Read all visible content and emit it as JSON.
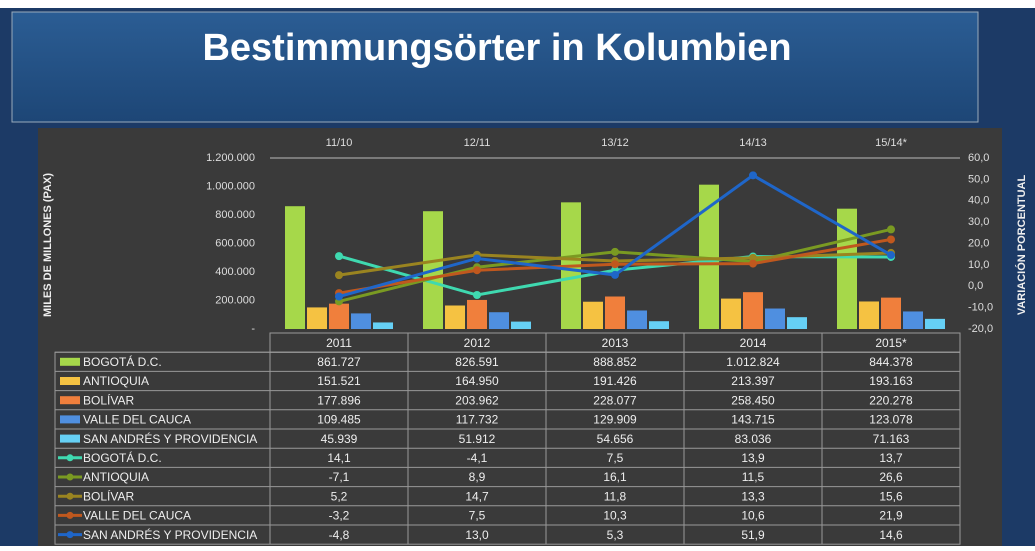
{
  "chart_data": {
    "type": "combo",
    "title": "Bestimmungsörter in Kolumbien",
    "y_label": "MILES DE MILLONES (PAX)",
    "y2_label": "VARIACIÓN PORCENTUAL",
    "categories": [
      "2011",
      "2012",
      "2013",
      "2014",
      "2015*"
    ],
    "top_categories": [
      "11/10",
      "12/11",
      "13/12",
      "14/13",
      "15/14*"
    ],
    "ylim": [
      0,
      1200000
    ],
    "yticks": [
      {
        "value": 0,
        "label": "-"
      },
      {
        "value": 200000,
        "label": "200.000"
      },
      {
        "value": 400000,
        "label": "400.000"
      },
      {
        "value": 600000,
        "label": "600.000"
      },
      {
        "value": 800000,
        "label": "800.000"
      },
      {
        "value": 1000000,
        "label": "1.000.000"
      },
      {
        "value": 1200000,
        "label": "1.200.000"
      }
    ],
    "y2lim": [
      -20,
      60
    ],
    "y2ticks": [
      {
        "value": -20,
        "label": "-20,0"
      },
      {
        "value": -10,
        "label": "-10,0"
      },
      {
        "value": 0,
        "label": "0,0"
      },
      {
        "value": 10,
        "label": "10,0"
      },
      {
        "value": 20,
        "label": "20,0"
      },
      {
        "value": 30,
        "label": "30,0"
      },
      {
        "value": 40,
        "label": "40,0"
      },
      {
        "value": 50,
        "label": "50,0"
      },
      {
        "value": 60,
        "label": "60,0"
      }
    ],
    "series": [
      {
        "name": "BOGOTÁ D.C.",
        "type": "bar",
        "color": "#a6d84a",
        "values": [
          861727,
          826591,
          888852,
          1012824,
          844378
        ],
        "value_labels": [
          "861.727",
          "826.591",
          "888.852",
          "1.012.824",
          "844.378"
        ]
      },
      {
        "name": "ANTIOQUIA",
        "type": "bar",
        "color": "#f5c242",
        "values": [
          151521,
          164950,
          191426,
          213397,
          193163
        ],
        "value_labels": [
          "151.521",
          "164.950",
          "191.426",
          "213.397",
          "193.163"
        ]
      },
      {
        "name": "BOLÍVAR",
        "type": "bar",
        "color": "#f07f3c",
        "values": [
          177896,
          203962,
          228077,
          258450,
          220278
        ],
        "value_labels": [
          "177.896",
          "203.962",
          "228.077",
          "258.450",
          "220.278"
        ]
      },
      {
        "name": "VALLE DEL CAUCA",
        "type": "bar",
        "color": "#4f8fe0",
        "values": [
          109485,
          117732,
          129909,
          143715,
          123078
        ],
        "value_labels": [
          "109.485",
          "117.732",
          "129.909",
          "143.715",
          "123.078"
        ]
      },
      {
        "name": "SAN ANDRÉS Y PROVIDENCIA",
        "type": "bar",
        "color": "#66d0f5",
        "values": [
          45939,
          51912,
          54656,
          83036,
          71163
        ],
        "value_labels": [
          "45.939",
          "51.912",
          "54.656",
          "83.036",
          "71.163"
        ]
      },
      {
        "name": "BOGOTÁ D.C.",
        "type": "line",
        "axis": "y2",
        "color": "#3fd9b0",
        "values": [
          14.1,
          -4.1,
          7.5,
          13.9,
          13.7
        ],
        "value_labels": [
          "14,1",
          "-4,1",
          "7,5",
          "13,9",
          "13,7"
        ]
      },
      {
        "name": "ANTIOQUIA",
        "type": "line",
        "axis": "y2",
        "color": "#7a9a22",
        "values": [
          -7.1,
          8.9,
          16.1,
          11.5,
          26.6
        ],
        "value_labels": [
          "-7,1",
          "8,9",
          "16,1",
          "11,5",
          "26,6"
        ]
      },
      {
        "name": "BOLÍVAR",
        "type": "line",
        "axis": "y2",
        "color": "#9a8420",
        "values": [
          5.2,
          14.7,
          11.8,
          13.3,
          15.6
        ],
        "value_labels": [
          "5,2",
          "14,7",
          "11,8",
          "13,3",
          "15,6"
        ]
      },
      {
        "name": "VALLE DEL CAUCA",
        "type": "line",
        "axis": "y2",
        "color": "#c0581e",
        "values": [
          -3.2,
          7.5,
          10.3,
          10.6,
          21.9
        ],
        "value_labels": [
          "-3,2",
          "7,5",
          "10,3",
          "10,6",
          "21,9"
        ]
      },
      {
        "name": "SAN ANDRÉS Y PROVIDENCIA",
        "type": "line",
        "axis": "y2",
        "color": "#1f66c9",
        "values": [
          -4.8,
          13.0,
          5.3,
          51.9,
          14.6
        ],
        "value_labels": [
          "-4,8",
          "13,0",
          "5,3",
          "51,9",
          "14,6"
        ]
      }
    ]
  }
}
